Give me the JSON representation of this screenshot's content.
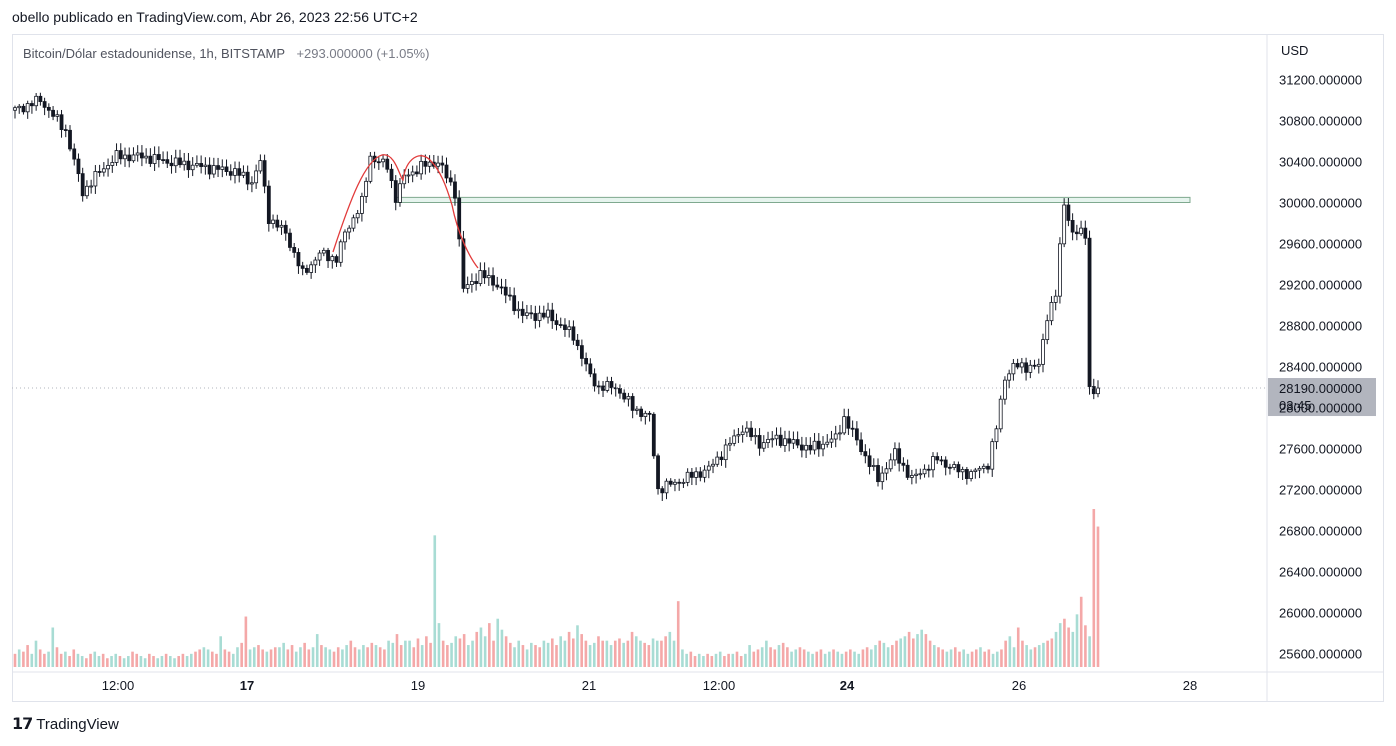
{
  "header": {
    "publish_line": "obello publicado en TradingView.com, Abr 26, 2023 22:56 UTC+2"
  },
  "symbol": {
    "name": "Bitcoin/Dólar estadounidense, 1h, BITSTAMP",
    "change": "+293.000000 (+1.05%)"
  },
  "footer": {
    "brand": "TradingView",
    "logo_icon": "tradingview-logo-icon"
  },
  "colors": {
    "candle": "#131722",
    "vol_up": "#a8dcd4",
    "vol_down": "#f4a8a8",
    "zone": "#e6f4ee",
    "zone_border": "#7fa98f",
    "pattern": "#e23b3b",
    "price_tag": "#b2b5be"
  },
  "chart_data": {
    "type": "candlestick",
    "currency_label": "USD",
    "y_ticks": [
      "31200.000000",
      "30800.000000",
      "30400.000000",
      "30000.000000",
      "29600.000000",
      "29200.000000",
      "28800.000000",
      "28400.000000",
      "28000.000000",
      "27600.000000",
      "27200.000000",
      "26800.000000",
      "26400.000000",
      "26000.000000",
      "25600.000000"
    ],
    "ylim": [
      25500,
      31500
    ],
    "x_ticks": [
      {
        "label": "12:00",
        "bold": false
      },
      {
        "label": "17",
        "bold": true
      },
      {
        "label": "19",
        "bold": false
      },
      {
        "label": "21",
        "bold": false
      },
      {
        "label": "12:00",
        "bold": false
      },
      {
        "label": "24",
        "bold": true
      },
      {
        "label": "26",
        "bold": false
      },
      {
        "label": "28",
        "bold": false
      }
    ],
    "current_price": {
      "value": 28190,
      "label": "28190.000000",
      "countdown": "03:45"
    },
    "resistance_zone": {
      "top": 30050,
      "bottom": 30000
    },
    "price_path": [
      [
        0,
        30900
      ],
      [
        6,
        31000
      ],
      [
        12,
        30700
      ],
      [
        16,
        30100
      ],
      [
        20,
        30300
      ],
      [
        24,
        30450
      ],
      [
        30,
        30450
      ],
      [
        36,
        30400
      ],
      [
        44,
        30350
      ],
      [
        52,
        30300
      ],
      [
        56,
        30200
      ],
      [
        58,
        30400
      ],
      [
        60,
        29850
      ],
      [
        64,
        29700
      ],
      [
        68,
        29300
      ],
      [
        72,
        29500
      ],
      [
        76,
        29450
      ],
      [
        78,
        29700
      ],
      [
        82,
        30000
      ],
      [
        84,
        30450
      ],
      [
        88,
        30350
      ],
      [
        90,
        30050
      ],
      [
        92,
        30250
      ],
      [
        96,
        30350
      ],
      [
        100,
        30400
      ],
      [
        104,
        30100
      ],
      [
        106,
        29150
      ],
      [
        110,
        29300
      ],
      [
        114,
        29200
      ],
      [
        118,
        29000
      ],
      [
        120,
        28900
      ],
      [
        126,
        28900
      ],
      [
        132,
        28700
      ],
      [
        136,
        28300
      ],
      [
        138,
        28200
      ],
      [
        142,
        28200
      ],
      [
        146,
        28000
      ],
      [
        150,
        27900
      ],
      [
        152,
        27200
      ],
      [
        158,
        27300
      ],
      [
        164,
        27400
      ],
      [
        168,
        27600
      ],
      [
        172,
        27800
      ],
      [
        176,
        27650
      ],
      [
        180,
        27700
      ],
      [
        184,
        27650
      ],
      [
        188,
        27600
      ],
      [
        194,
        27700
      ],
      [
        196,
        27900
      ],
      [
        200,
        27600
      ],
      [
        204,
        27300
      ],
      [
        208,
        27550
      ],
      [
        212,
        27300
      ],
      [
        218,
        27500
      ],
      [
        222,
        27400
      ],
      [
        226,
        27350
      ],
      [
        230,
        27450
      ],
      [
        232,
        27800
      ],
      [
        234,
        28300
      ],
      [
        236,
        28400
      ],
      [
        242,
        28400
      ],
      [
        244,
        28900
      ],
      [
        246,
        29100
      ],
      [
        248,
        30000
      ],
      [
        250,
        29700
      ],
      [
        253,
        29700
      ],
      [
        254,
        28200
      ],
      [
        255,
        28150
      ],
      [
        256,
        28190
      ]
    ],
    "volume": [
      6,
      8,
      7,
      10,
      6,
      12,
      8,
      6,
      7,
      18,
      9,
      6,
      7,
      5,
      8,
      6,
      5,
      4,
      6,
      7,
      5,
      6,
      4,
      5,
      6,
      5,
      4,
      5,
      7,
      6,
      5,
      4,
      6,
      5,
      4,
      5,
      6,
      5,
      4,
      5,
      6,
      5,
      6,
      7,
      8,
      9,
      8,
      7,
      6,
      14,
      8,
      7,
      6,
      9,
      11,
      23,
      8,
      9,
      10,
      8,
      7,
      8,
      9,
      9,
      11,
      8,
      10,
      7,
      9,
      11,
      8,
      9,
      15,
      10,
      9,
      8,
      7,
      9,
      8,
      10,
      12,
      9,
      8,
      10,
      9,
      11,
      10,
      9,
      8,
      12,
      11,
      15,
      10,
      12,
      12,
      9,
      13,
      10,
      14,
      11,
      60,
      20,
      12,
      10,
      11,
      14,
      13,
      15,
      10,
      12,
      16,
      18,
      14,
      20,
      12,
      22,
      17,
      14,
      11,
      9,
      12,
      10,
      8,
      11,
      10,
      9,
      12,
      11,
      13,
      10,
      14,
      12,
      16,
      13,
      19,
      15,
      12,
      10,
      11,
      14,
      12,
      12,
      10,
      12,
      13,
      11,
      12,
      16,
      14,
      12,
      11,
      10,
      13,
      12,
      12,
      14,
      16,
      12,
      30,
      8,
      6,
      7,
      5,
      6,
      5,
      6,
      5,
      6,
      7,
      5,
      6,
      6,
      7,
      5,
      6,
      10,
      7,
      8,
      9,
      12,
      9,
      8,
      10,
      11,
      9,
      7,
      8,
      9,
      8,
      7,
      6,
      7,
      8,
      6,
      7,
      8,
      7,
      6,
      7,
      8,
      7,
      6,
      8,
      9,
      8,
      10,
      12,
      11,
      9,
      10,
      12,
      13,
      14,
      16,
      13,
      15,
      17,
      15,
      12,
      10,
      9,
      8,
      7,
      8,
      9,
      7,
      8,
      6,
      7,
      8,
      9,
      7,
      8,
      6,
      7,
      8,
      12,
      14,
      9,
      18,
      12,
      10,
      8,
      9,
      10,
      11,
      12,
      13,
      16,
      20,
      22,
      18,
      16,
      24,
      32,
      19,
      14,
      72,
      64
    ]
  }
}
